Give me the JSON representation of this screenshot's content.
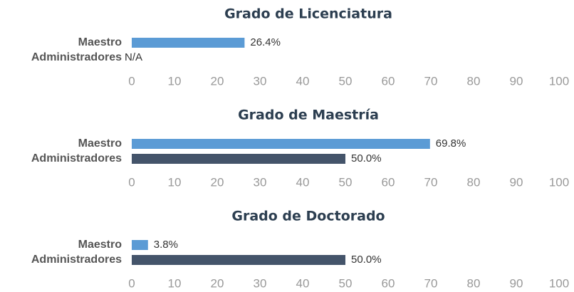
{
  "chart_data": [
    {
      "type": "bar",
      "orientation": "horizontal",
      "title": "Grado de Licenciatura",
      "categories": [
        "Maestro",
        "Administradores"
      ],
      "values": [
        26.4,
        null
      ],
      "value_labels": [
        "26.4%",
        "N/A"
      ],
      "colors": [
        "#5b9bd5",
        "#44546a"
      ],
      "xlim": [
        0,
        100
      ],
      "xticks": [
        0,
        10,
        20,
        30,
        40,
        50,
        60,
        70,
        80,
        90,
        100
      ]
    },
    {
      "type": "bar",
      "orientation": "horizontal",
      "title": "Grado de Maestría",
      "categories": [
        "Maestro",
        "Administradores"
      ],
      "values": [
        69.8,
        50.0
      ],
      "value_labels": [
        "69.8%",
        "50.0%"
      ],
      "colors": [
        "#5b9bd5",
        "#44546a"
      ],
      "xlim": [
        0,
        100
      ],
      "xticks": [
        0,
        10,
        20,
        30,
        40,
        50,
        60,
        70,
        80,
        90,
        100
      ]
    },
    {
      "type": "bar",
      "orientation": "horizontal",
      "title": "Grado de Doctorado",
      "categories": [
        "Maestro",
        "Administradores"
      ],
      "values": [
        3.8,
        50.0
      ],
      "value_labels": [
        "3.8%",
        "50.0%"
      ],
      "colors": [
        "#5b9bd5",
        "#44546a"
      ],
      "xlim": [
        0,
        100
      ],
      "xticks": [
        0,
        10,
        20,
        30,
        40,
        50,
        60,
        70,
        80,
        90,
        100
      ]
    }
  ]
}
